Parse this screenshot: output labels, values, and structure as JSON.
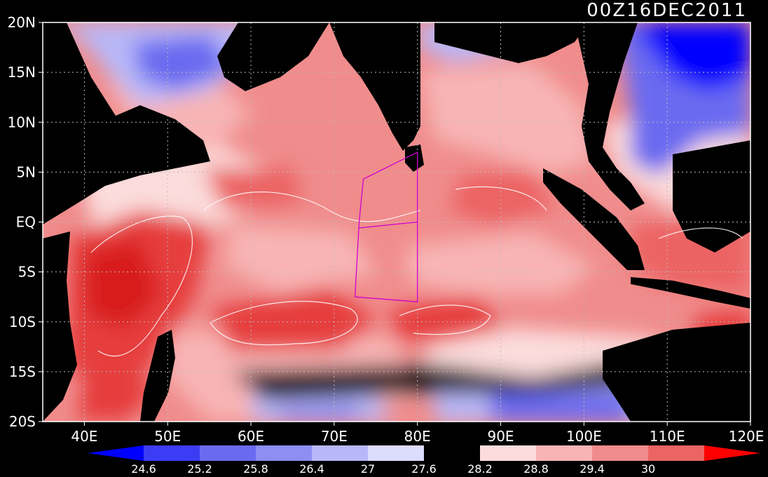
{
  "title": "00Z16DEC2011",
  "map": {
    "lon_range": [
      35,
      120
    ],
    "lat_range": [
      -20,
      20
    ],
    "lon_ticks": [
      {
        "value": 40,
        "label": "40E"
      },
      {
        "value": 50,
        "label": "50E"
      },
      {
        "value": 60,
        "label": "60E"
      },
      {
        "value": 70,
        "label": "70E"
      },
      {
        "value": 80,
        "label": "80E"
      },
      {
        "value": 90,
        "label": "90E"
      },
      {
        "value": 100,
        "label": "100E"
      },
      {
        "value": 110,
        "label": "110E"
      },
      {
        "value": 120,
        "label": "120E"
      }
    ],
    "lat_ticks": [
      {
        "value": 20,
        "label": "20N"
      },
      {
        "value": 15,
        "label": "15N"
      },
      {
        "value": 10,
        "label": "10N"
      },
      {
        "value": 5,
        "label": "5N"
      },
      {
        "value": 0,
        "label": "EQ"
      },
      {
        "value": -5,
        "label": "5S"
      },
      {
        "value": -10,
        "label": "10S"
      },
      {
        "value": -15,
        "label": "15S"
      },
      {
        "value": -20,
        "label": "20S"
      }
    ],
    "grid": "dotted",
    "box_outline": [
      [
        80,
        7
      ],
      [
        73.5,
        4.3
      ],
      [
        73,
        0
      ],
      [
        72.5,
        -7.5
      ],
      [
        80,
        -8
      ],
      [
        80,
        7
      ]
    ],
    "box_divider": [
      [
        73,
        -0.6
      ],
      [
        80,
        0
      ]
    ]
  },
  "colorbar": {
    "labels": [
      "24.6",
      "25.2",
      "25.8",
      "26.4",
      "27",
      "27.6",
      "28.2",
      "28.8",
      "29.4",
      "30"
    ],
    "colors": {
      "below_min": "#0000ff",
      "c1": "#3c3cf5",
      "c2": "#6a6af0",
      "c3": "#8e8ef2",
      "c4": "#b8b8f8",
      "c5": "#dcdcfc",
      "c6": "#000000",
      "c7": "#fcdcdc",
      "c8": "#f8b4b4",
      "c9": "#f08c8c",
      "c10": "#ec6464",
      "c11": "#e63c3c",
      "above_max": "#ff0000"
    }
  }
}
